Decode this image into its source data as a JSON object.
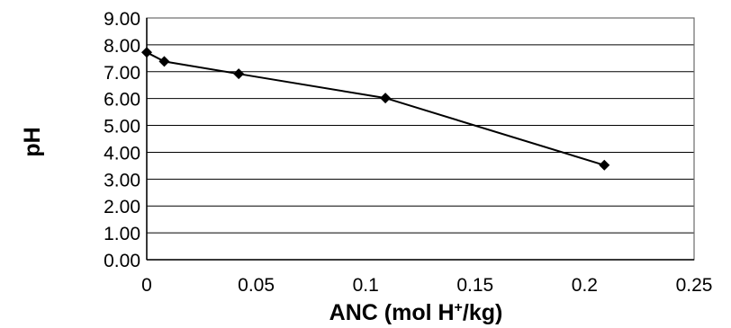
{
  "chart_data": {
    "type": "line",
    "title": "",
    "xlabel": "ANC (mol H+/kg)",
    "xlabel_parts": {
      "before": "ANC (mol H",
      "superscript": "+",
      "after": "/kg)"
    },
    "ylabel": "pH",
    "xlim": [
      0,
      0.25
    ],
    "ylim": [
      0,
      9
    ],
    "x_ticks": [
      0,
      0.05,
      0.1,
      0.15,
      0.2,
      0.25
    ],
    "x_tick_labels": [
      "0",
      "0.05",
      "0.1",
      "0.15",
      "0.2",
      "0.25"
    ],
    "y_ticks": [
      0,
      1,
      2,
      3,
      4,
      5,
      6,
      7,
      8,
      9
    ],
    "y_tick_labels": [
      "0.00",
      "1.00",
      "2.00",
      "3.00",
      "4.00",
      "5.00",
      "6.00",
      "7.00",
      "8.00",
      "9.00"
    ],
    "grid": "horizontal",
    "legend": "none",
    "marker": "diamond",
    "series": [
      {
        "x": [
          0,
          0.008,
          0.042,
          0.109,
          0.209
        ],
        "y": [
          7.72,
          7.38,
          6.92,
          6.02,
          3.52
        ]
      }
    ]
  }
}
